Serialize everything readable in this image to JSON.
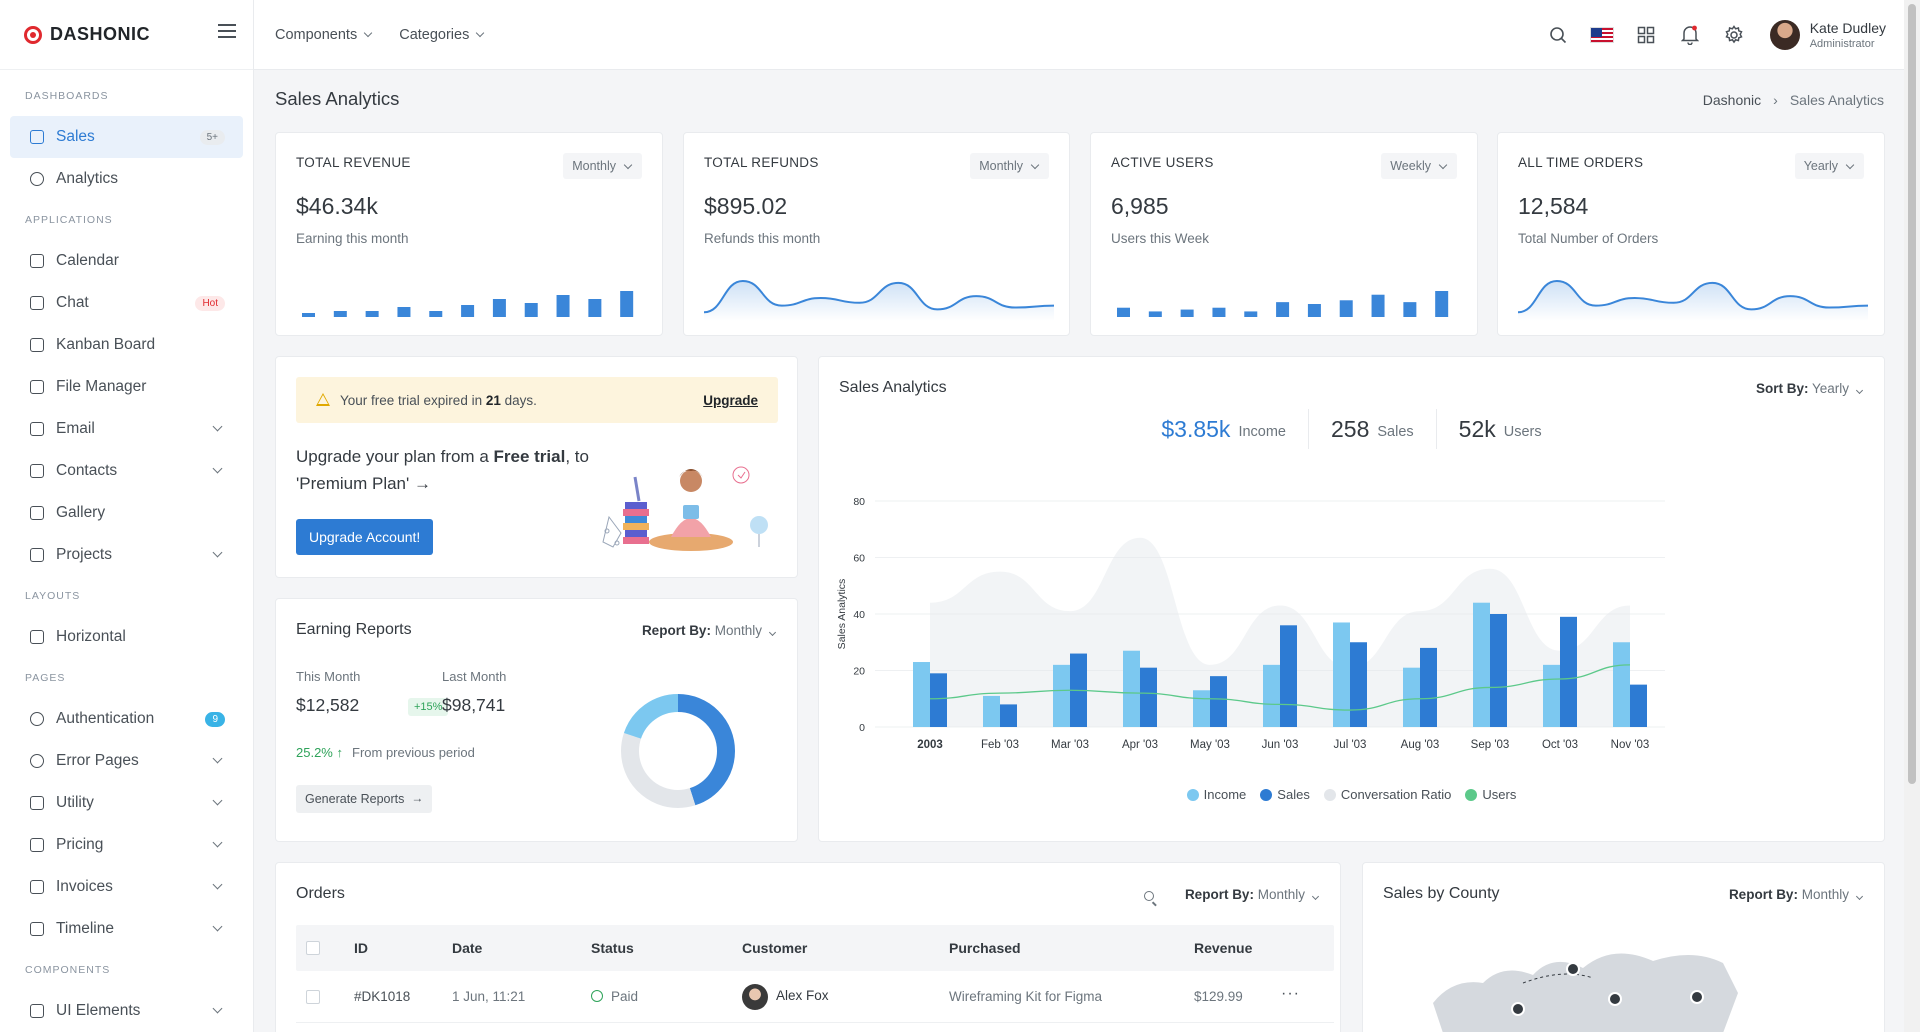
{
  "brand": {
    "name": "DASHONIC"
  },
  "sidebar": {
    "sections": {
      "dashboards": "DASHBOARDS",
      "applications": "APPLICATIONS",
      "layouts": "LAYOUTS",
      "pages": "PAGES",
      "components": "COMPONENTS"
    },
    "items": {
      "sales": {
        "label": "Sales",
        "badge": "5+"
      },
      "analytics": {
        "label": "Analytics"
      },
      "calendar": {
        "label": "Calendar"
      },
      "chat": {
        "label": "Chat",
        "badge": "Hot"
      },
      "kanban": {
        "label": "Kanban Board"
      },
      "files": {
        "label": "File Manager"
      },
      "email": {
        "label": "Email"
      },
      "contacts": {
        "label": "Contacts"
      },
      "gallery": {
        "label": "Gallery"
      },
      "projects": {
        "label": "Projects"
      },
      "horizontal": {
        "label": "Horizontal"
      },
      "auth": {
        "label": "Authentication",
        "badge": "9"
      },
      "errors": {
        "label": "Error Pages"
      },
      "utility": {
        "label": "Utility"
      },
      "pricing": {
        "label": "Pricing"
      },
      "invoices": {
        "label": "Invoices"
      },
      "timeline": {
        "label": "Timeline"
      },
      "ui": {
        "label": "UI Elements"
      }
    }
  },
  "topbar": {
    "menu": [
      "Components",
      "Categories"
    ],
    "user": {
      "name": "Kate Dudley",
      "role": "Administrator"
    },
    "icons": [
      "search-icon",
      "flag-icon",
      "apps-grid-icon",
      "bell-icon",
      "gear-icon"
    ]
  },
  "page": {
    "title": "Sales Analytics",
    "breadcrumb": {
      "root": "Dashonic",
      "current": "Sales Analytics"
    }
  },
  "stats": [
    {
      "label": "TOTAL REVENUE",
      "period": "Monthly",
      "value": "$46.34k",
      "sub": "Earning this month",
      "kind": "bar",
      "spark": [
        2,
        3,
        3,
        5,
        3,
        6,
        9,
        7,
        11,
        9,
        13
      ]
    },
    {
      "label": "TOTAL REFUNDS",
      "period": "Monthly",
      "value": "$895.02",
      "sub": "Refunds this month",
      "kind": "line",
      "spark": [
        5,
        38,
        12,
        20,
        15,
        36,
        8,
        22,
        10,
        12
      ]
    },
    {
      "label": "ACTIVE USERS",
      "period": "Weekly",
      "value": "6,985",
      "sub": "Users this Week",
      "kind": "bar",
      "spark": [
        5,
        3,
        4,
        5,
        3,
        8,
        7,
        9,
        12,
        8,
        14
      ]
    },
    {
      "label": "ALL TIME ORDERS",
      "period": "Yearly",
      "value": "12,584",
      "sub": "Total Number of Orders",
      "kind": "line",
      "spark": [
        5,
        38,
        12,
        20,
        15,
        36,
        8,
        22,
        10,
        12
      ]
    }
  ],
  "trial": {
    "prefix": "Your free trial expired in",
    "days": "21",
    "suffix": "days.",
    "link": "Upgrade",
    "msg_a": "Upgrade your plan from a",
    "msg_free": "Free trial",
    "msg_b": ", to 'Premium Plan'",
    "button": "Upgrade Account!"
  },
  "earning": {
    "title": "Earning Reports",
    "report_by": "Report By:",
    "period": "Monthly",
    "this_month_label": "This Month",
    "this_month_value": "$12,582",
    "change": "+15%",
    "last_month_label": "Last Month",
    "last_month_value": "$98,741",
    "pct": "25.2%",
    "prev_text": "From previous period",
    "button": "Generate Reports",
    "donut": [
      {
        "value": 45,
        "color": "#3a86d9"
      },
      {
        "value": 35,
        "color": "#e3e6ea"
      },
      {
        "value": 20,
        "color": "#7cc8f0"
      }
    ]
  },
  "analytics": {
    "title": "Sales Analytics",
    "sort_label": "Sort By:",
    "sort_value": "Yearly",
    "kpis": [
      {
        "value": "$3.85k",
        "label": "Income"
      },
      {
        "value": "258",
        "label": "Sales"
      },
      {
        "value": "52k",
        "label": "Users"
      }
    ]
  },
  "chart_data": {
    "type": "bar",
    "ylabel": "Sales Analytics",
    "ylim": [
      0,
      80
    ],
    "yticks": [
      0,
      20,
      40,
      60,
      80
    ],
    "categories": [
      "2003",
      "Feb '03",
      "Mar '03",
      "Apr '03",
      "May '03",
      "Jun '03",
      "Jul '03",
      "Aug '03",
      "Sep '03",
      "Oct '03",
      "Nov '03"
    ],
    "series": [
      {
        "name": "Income",
        "values": [
          23,
          11,
          22,
          27,
          13,
          22,
          37,
          21,
          44,
          22,
          30
        ],
        "color": "#7cc8f0"
      },
      {
        "name": "Sales",
        "values": [
          19,
          8,
          26,
          21,
          18,
          36,
          30,
          28,
          40,
          39,
          15
        ],
        "color": "#2d7bd3"
      },
      {
        "name": "Conversation Ratio",
        "values": [
          44,
          55,
          41,
          67,
          22,
          43,
          21,
          41,
          56,
          27,
          43
        ],
        "color": "#e3e6ea"
      },
      {
        "name": "Users",
        "values": [
          10,
          12,
          13,
          12,
          10,
          8,
          6,
          10,
          14,
          17,
          22
        ],
        "color": "#5cc98a"
      }
    ]
  },
  "orders": {
    "title": "Orders",
    "report_by": "Report By:",
    "period": "Monthly",
    "columns": [
      "ID",
      "Date",
      "Status",
      "Customer",
      "Purchased",
      "Revenue"
    ],
    "rows": [
      {
        "id": "#DK1018",
        "date": "1 Jun, 11:21",
        "status": "Paid",
        "customer": "Alex Fox",
        "purchased": "Wireframing Kit for Figma",
        "revenue": "$129.99",
        "more": "···"
      }
    ]
  },
  "county": {
    "title": "Sales by County",
    "report_by": "Report By:",
    "period": "Monthly"
  }
}
